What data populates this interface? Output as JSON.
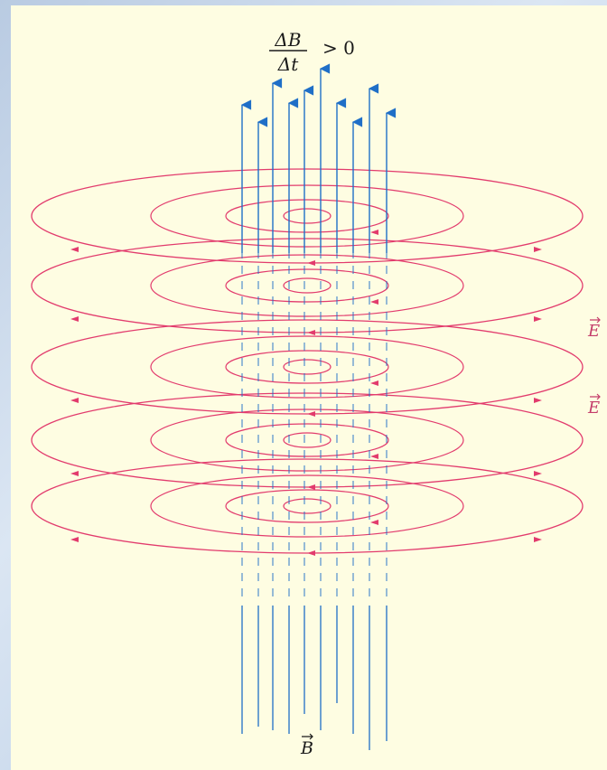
{
  "formula": {
    "numerator": "ΔB",
    "denominator": "Δt",
    "relation": "> 0"
  },
  "labels": {
    "e_field_upper": "E",
    "e_field_lower": "E",
    "b_field": "B"
  },
  "colors": {
    "panel_background": "#fefde2",
    "outer_frame": "#c7d6ea",
    "magnetic_field_lines": "#1f6fc7",
    "electric_field_loops": "#e23b6d",
    "label_e_color": "#c43c6a"
  },
  "icons": {
    "b_field_arrow": "upward-arrowhead",
    "e_field_arrow": "loop-direction-arrowhead"
  }
}
